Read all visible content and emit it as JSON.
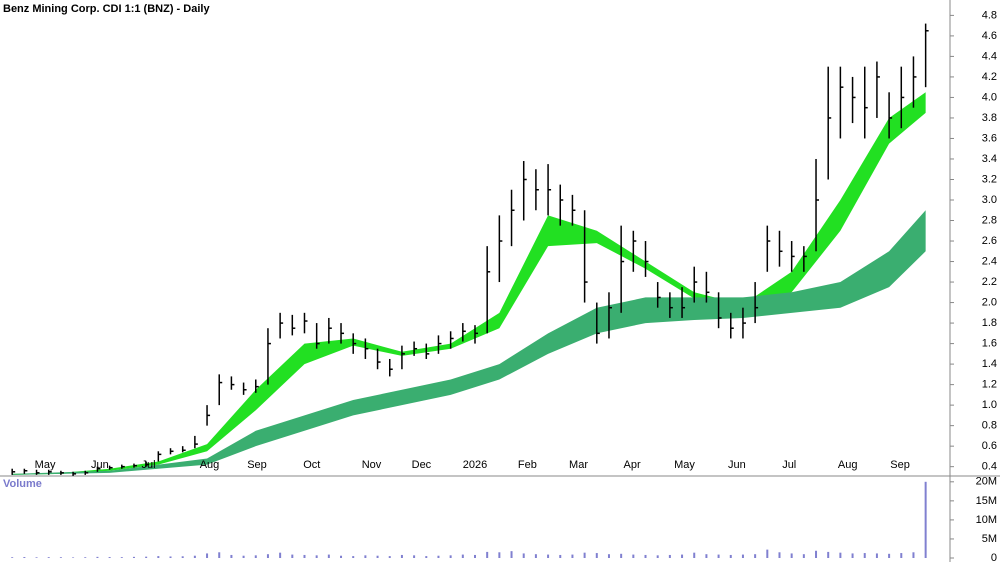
{
  "chart_data": {
    "type": "candlestick",
    "title": "Benz Mining Corp. CDI 1:1 (BNZ) - Daily",
    "x": [
      0,
      1,
      2,
      3,
      4,
      5,
      6,
      7,
      8,
      9,
      10,
      11,
      12,
      13,
      14,
      15,
      16,
      17,
      18,
      19,
      20,
      21,
      22,
      23,
      24,
      25,
      26,
      27,
      28,
      29,
      30,
      31,
      32,
      33,
      34,
      35,
      36,
      37,
      38,
      39,
      40,
      41,
      42,
      43,
      44,
      45,
      46,
      47,
      48,
      49,
      50,
      51,
      52,
      53,
      54,
      55,
      56,
      57,
      58,
      59,
      60,
      61,
      62,
      63,
      64,
      65,
      66,
      67,
      68,
      69,
      70,
      71,
      72,
      73,
      74,
      75
    ],
    "high": [
      0.38,
      0.38,
      0.37,
      0.37,
      0.36,
      0.35,
      0.36,
      0.4,
      0.41,
      0.42,
      0.43,
      0.45,
      0.55,
      0.58,
      0.6,
      0.7,
      1.0,
      1.3,
      1.28,
      1.22,
      1.25,
      1.75,
      1.9,
      1.88,
      1.9,
      1.8,
      1.85,
      1.8,
      1.7,
      1.65,
      1.55,
      1.45,
      1.58,
      1.62,
      1.6,
      1.68,
      1.72,
      1.8,
      1.78,
      2.55,
      2.85,
      3.1,
      3.38,
      3.3,
      3.35,
      3.15,
      3.05,
      2.9,
      2.0,
      2.1,
      2.75,
      2.7,
      2.6,
      2.2,
      2.1,
      2.15,
      2.35,
      2.3,
      2.1,
      1.9,
      1.95,
      2.2,
      2.75,
      2.7,
      2.6,
      2.55,
      3.4,
      4.3,
      4.3,
      4.2,
      4.3,
      4.35,
      4.05,
      4.3,
      4.4,
      4.72
    ],
    "low": [
      0.32,
      0.33,
      0.32,
      0.32,
      0.32,
      0.31,
      0.32,
      0.35,
      0.37,
      0.38,
      0.39,
      0.4,
      0.45,
      0.52,
      0.54,
      0.58,
      0.8,
      1.0,
      1.15,
      1.1,
      1.12,
      1.2,
      1.65,
      1.68,
      1.7,
      1.55,
      1.6,
      1.6,
      1.5,
      1.45,
      1.35,
      1.28,
      1.35,
      1.48,
      1.45,
      1.5,
      1.55,
      1.62,
      1.6,
      1.7,
      2.2,
      2.55,
      2.8,
      2.9,
      2.85,
      2.75,
      2.75,
      2.0,
      1.6,
      1.65,
      1.9,
      2.3,
      2.25,
      1.95,
      1.85,
      1.85,
      2.0,
      2.0,
      1.75,
      1.65,
      1.65,
      1.8,
      2.3,
      2.35,
      2.3,
      2.3,
      2.5,
      3.2,
      3.6,
      3.75,
      3.6,
      3.8,
      3.6,
      3.7,
      3.9,
      4.1
    ],
    "close": [
      0.35,
      0.36,
      0.34,
      0.35,
      0.34,
      0.33,
      0.34,
      0.38,
      0.39,
      0.4,
      0.41,
      0.42,
      0.52,
      0.55,
      0.56,
      0.62,
      0.9,
      1.22,
      1.2,
      1.15,
      1.18,
      1.6,
      1.8,
      1.75,
      1.82,
      1.6,
      1.75,
      1.7,
      1.6,
      1.55,
      1.42,
      1.35,
      1.5,
      1.55,
      1.5,
      1.6,
      1.65,
      1.72,
      1.7,
      2.3,
      2.6,
      2.9,
      3.2,
      3.1,
      3.1,
      3.0,
      2.9,
      2.2,
      1.7,
      1.95,
      2.4,
      2.6,
      2.4,
      2.05,
      1.95,
      1.95,
      2.2,
      2.1,
      1.85,
      1.75,
      1.8,
      1.95,
      2.6,
      2.5,
      2.45,
      2.45,
      3.0,
      3.8,
      4.1,
      4.0,
      3.9,
      4.2,
      3.8,
      4.0,
      4.2,
      4.65
    ],
    "color": "#000000",
    "ribbons": [
      {
        "color": "#22e022",
        "x": [
          0,
          4,
          8,
          12,
          16,
          20,
          24,
          28,
          32,
          36,
          40,
          44,
          48,
          52,
          56,
          60,
          64,
          68,
          72,
          75
        ],
        "upper": [
          0.33,
          0.34,
          0.38,
          0.45,
          0.62,
          1.15,
          1.6,
          1.65,
          1.52,
          1.6,
          1.9,
          2.85,
          2.7,
          2.4,
          2.1,
          1.98,
          2.3,
          3.0,
          3.8,
          4.05
        ],
        "lower": [
          0.32,
          0.33,
          0.36,
          0.42,
          0.55,
          0.95,
          1.4,
          1.58,
          1.48,
          1.55,
          1.75,
          2.55,
          2.58,
          2.33,
          2.04,
          1.88,
          2.1,
          2.7,
          3.55,
          3.85
        ]
      },
      {
        "color": "#3aae70",
        "x": [
          0,
          8,
          16,
          20,
          24,
          28,
          32,
          36,
          40,
          44,
          48,
          52,
          56,
          60,
          64,
          68,
          72,
          75
        ],
        "upper": [
          0.33,
          0.36,
          0.48,
          0.75,
          0.9,
          1.05,
          1.15,
          1.25,
          1.4,
          1.7,
          1.95,
          2.05,
          2.05,
          2.05,
          2.1,
          2.2,
          2.5,
          2.9
        ],
        "lower": [
          0.32,
          0.34,
          0.42,
          0.6,
          0.75,
          0.9,
          1.0,
          1.1,
          1.25,
          1.5,
          1.7,
          1.8,
          1.83,
          1.85,
          1.9,
          1.95,
          2.15,
          2.5
        ]
      }
    ],
    "xlim": [
      -1,
      77
    ],
    "xticks": [
      {
        "value": 2.7,
        "label": "May"
      },
      {
        "value": 7.2,
        "label": "Jun"
      },
      {
        "value": 11.2,
        "label": "Jul"
      },
      {
        "value": 16.2,
        "label": "Aug"
      },
      {
        "value": 20.1,
        "label": "Sep"
      },
      {
        "value": 24.6,
        "label": "Oct"
      },
      {
        "value": 29.5,
        "label": "Nov"
      },
      {
        "value": 33.6,
        "label": "Dec"
      },
      {
        "value": 38.0,
        "label": "2026"
      },
      {
        "value": 42.3,
        "label": "Feb"
      },
      {
        "value": 46.5,
        "label": "Mar"
      },
      {
        "value": 50.9,
        "label": "Apr"
      },
      {
        "value": 55.2,
        "label": "May"
      },
      {
        "value": 59.5,
        "label": "Jun"
      },
      {
        "value": 63.8,
        "label": "Jul"
      },
      {
        "value": 68.6,
        "label": "Aug"
      },
      {
        "value": 72.9,
        "label": "Sep"
      }
    ],
    "ylim": [
      0.27,
      4.95
    ],
    "yticks": [
      0.4,
      0.6,
      0.8,
      {
        "value": 1,
        "label": "1.0"
      },
      1.2,
      1.4,
      1.6,
      1.8,
      {
        "value": 2,
        "label": "2.0"
      },
      2.2,
      2.4,
      2.6,
      2.8,
      {
        "value": 3,
        "label": "3.0"
      },
      3.2,
      3.4,
      3.6,
      3.8,
      {
        "value": 4,
        "label": "4.0"
      },
      4.2,
      4.4,
      4.6,
      4.8
    ],
    "volume_label": "Volume",
    "volume": [
      200000,
      250000,
      180000,
      220000,
      200000,
      150000,
      200000,
      300000,
      250000,
      220000,
      300000,
      350000,
      500000,
      400000,
      450000,
      600000,
      1200000,
      1500000,
      800000,
      600000,
      700000,
      1000000,
      1400000,
      900000,
      800000,
      700000,
      900000,
      600000,
      500000,
      700000,
      600000,
      500000,
      800000,
      700000,
      500000,
      600000,
      700000,
      900000,
      800000,
      1600000,
      1500000,
      1800000,
      1200000,
      1000000,
      900000,
      800000,
      900000,
      1400000,
      1300000,
      1000000,
      1100000,
      900000,
      800000,
      700000,
      800000,
      900000,
      1400000,
      1000000,
      900000,
      800000,
      900000,
      1000000,
      2200000,
      1500000,
      1200000,
      1000000,
      1900000,
      1600000,
      1400000,
      1200000,
      1300000,
      1200000,
      1100000,
      1300000,
      1500000,
      20000000
    ],
    "volume_color": "#8080d0",
    "volume_ylim": [
      0,
      21000000
    ],
    "volume_yticks": [
      0,
      {
        "value": 5000000,
        "label": "5M"
      },
      {
        "value": 10000000,
        "label": "10M"
      },
      {
        "value": 15000000,
        "label": "15M"
      },
      {
        "value": 20000000,
        "label": "20M"
      }
    ]
  }
}
